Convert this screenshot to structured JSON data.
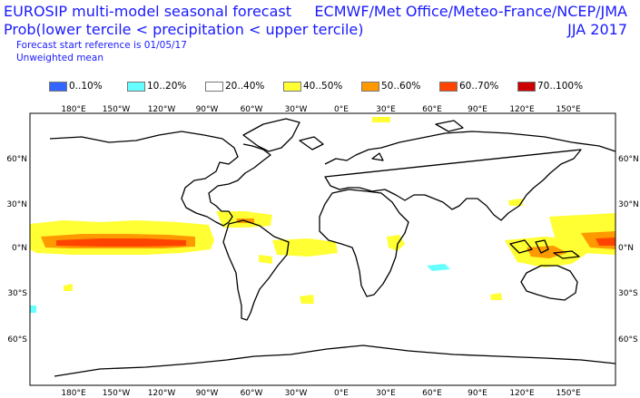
{
  "header": {
    "title_line1": "EUROSIP multi-model seasonal forecast",
    "title_line2": "Prob(lower tercile < precipitation < upper tercile)",
    "reference": "Forecast start reference is 01/05/17",
    "weighting": "Unweighted mean",
    "centres": "ECMWF/Met Office/Meteo-France/NCEP/JMA",
    "season": "JJA 2017"
  },
  "legend": [
    {
      "label": "0..10%",
      "color": "#3366ff"
    },
    {
      "label": "10..20%",
      "color": "#66ffff"
    },
    {
      "label": "20..40%",
      "color": "#ffffff"
    },
    {
      "label": "40..50%",
      "color": "#ffff33"
    },
    {
      "label": "50..60%",
      "color": "#ff9900"
    },
    {
      "label": "60..70%",
      "color": "#ff4400"
    },
    {
      "label": "70..100%",
      "color": "#cc0000"
    }
  ],
  "axes": {
    "lon_labels": [
      "180°E",
      "150°W",
      "120°W",
      "90°W",
      "60°W",
      "30°W",
      "0°E",
      "30°E",
      "60°E",
      "90°E",
      "120°E",
      "150°E"
    ],
    "lat_labels": [
      "60°N",
      "30°N",
      "0°N",
      "30°S",
      "60°S"
    ]
  }
}
